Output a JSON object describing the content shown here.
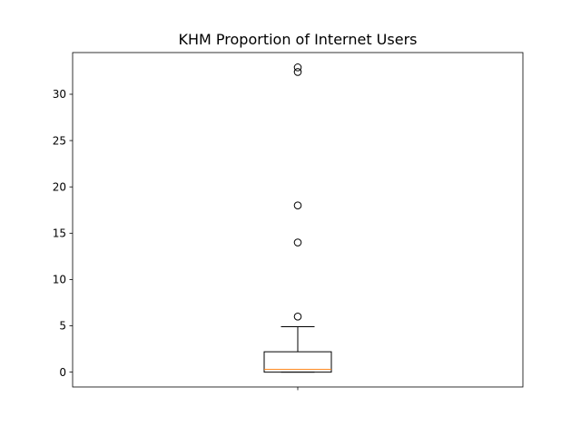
{
  "chart_data": {
    "type": "box",
    "title": "KHM Proportion of Internet Users",
    "xlabel": "",
    "ylabel": "",
    "ylim": [
      -1.6,
      34.5
    ],
    "yticks": [
      0,
      5,
      10,
      15,
      20,
      25,
      30
    ],
    "ytick_labels": [
      "0",
      "5",
      "10",
      "15",
      "20",
      "25",
      "30"
    ],
    "grid": false,
    "legend": "none",
    "box": {
      "whisker_low": 0.0,
      "q1": 0.0,
      "median": 0.3,
      "q3": 2.2,
      "whisker_high": 4.9
    },
    "outliers": [
      6.0,
      14.0,
      18.0,
      32.4,
      32.9
    ],
    "colors": {
      "box": "#000000",
      "median": "#ff7f0e",
      "outlier": "#000000"
    }
  }
}
